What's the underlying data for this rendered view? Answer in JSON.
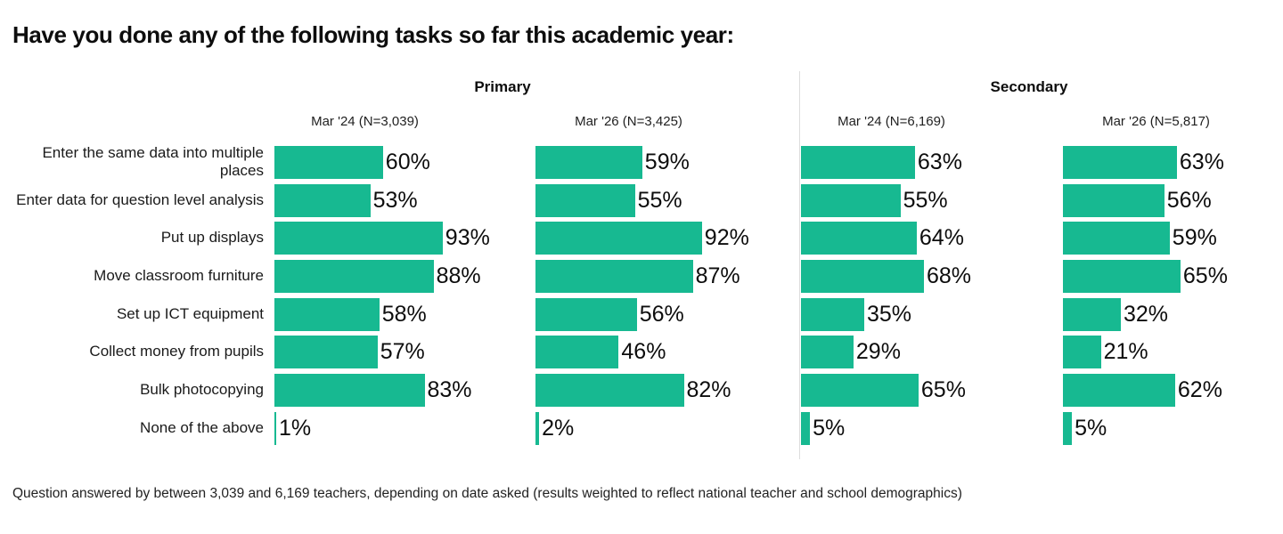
{
  "title": "Have you done any of the following tasks so far this academic year:",
  "footnote": "Question answered by between 3,039 and 6,169 teachers, depending on date asked (results weighted to reflect national teacher and school demographics)",
  "colors": {
    "bar": "#17b991",
    "divider": "#dddddd",
    "text": "#111111"
  },
  "chart_data": {
    "type": "bar",
    "orientation": "horizontal",
    "title": "Have you done any of the following tasks so far this academic year:",
    "value_suffix": "%",
    "xlim": [
      0,
      100
    ],
    "grid": false,
    "legend_position": "none",
    "groups": [
      {
        "label": "Primary",
        "columns": [
          "Mar '24 (N=3,039)",
          "Mar '26 (N=3,425)"
        ]
      },
      {
        "label": "Secondary",
        "columns": [
          "Mar '24 (N=6,169)",
          "Mar '26 (N=5,817)"
        ]
      }
    ],
    "categories": [
      "Enter the same data into multiple places",
      "Enter data for question level analysis",
      "Put up displays",
      "Move classroom furniture",
      "Set up ICT equipment",
      "Collect money from pupils",
      "Bulk photocopying",
      "None of the above"
    ],
    "series": [
      {
        "name": "Primary Mar '24 (N=3,039)",
        "values": [
          60,
          53,
          93,
          88,
          58,
          57,
          83,
          1
        ]
      },
      {
        "name": "Primary Mar '26 (N=3,425)",
        "values": [
          59,
          55,
          92,
          87,
          56,
          46,
          82,
          2
        ]
      },
      {
        "name": "Secondary Mar '24 (N=6,169)",
        "values": [
          63,
          55,
          64,
          68,
          35,
          29,
          65,
          5
        ]
      },
      {
        "name": "Secondary Mar '26 (N=5,817)",
        "values": [
          63,
          56,
          59,
          65,
          32,
          21,
          62,
          5
        ]
      }
    ]
  }
}
